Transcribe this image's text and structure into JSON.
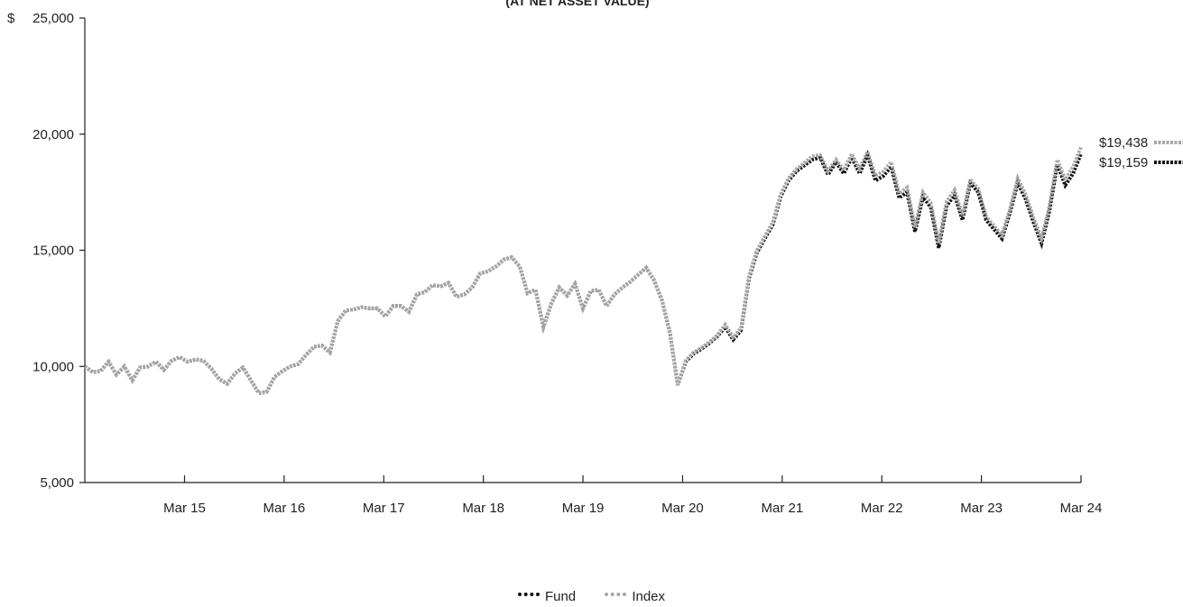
{
  "chart_data": {
    "type": "line",
    "title": "(AT NET ASSET VALUE)",
    "currency_prefix": "$",
    "y_ticks": [
      "25,000",
      "20,000",
      "15,000",
      "10,000",
      "5,000"
    ],
    "ylim": [
      5000,
      25000
    ],
    "x_ticks": [
      "Mar 15",
      "Mar 16",
      "Mar 17",
      "Mar 18",
      "Mar 19",
      "Mar 20",
      "Mar 21",
      "Mar 22",
      "Mar 23",
      "Mar 24"
    ],
    "grid": false,
    "legend_position": "bottom-center",
    "series": [
      {
        "name": "Fund",
        "color": "#111111",
        "end_label": "$19,159",
        "values": [
          10000,
          9750,
          9800,
          10200,
          9650,
          10000,
          9400,
          9950,
          10000,
          10200,
          9850,
          10250,
          10400,
          10200,
          10300,
          10250,
          9900,
          9450,
          9250,
          9700,
          9950,
          9400,
          8850,
          8900,
          9550,
          9800,
          10000,
          10100,
          10500,
          10850,
          10900,
          10600,
          11950,
          12400,
          12450,
          12550,
          12500,
          12500,
          12150,
          12600,
          12600,
          12350,
          13100,
          13200,
          13500,
          13450,
          13600,
          13000,
          13100,
          13400,
          14000,
          14100,
          14300,
          14600,
          14700,
          14300,
          13150,
          13300,
          11700,
          12700,
          13400,
          13050,
          13550,
          12500,
          13250,
          13300,
          12600,
          13100,
          13400,
          13650,
          13950,
          14250,
          13700,
          12850,
          11450,
          9200,
          10200,
          10550,
          10750,
          11000,
          11300,
          11700,
          11150,
          11550,
          13800,
          14900,
          15500,
          16100,
          17300,
          18000,
          18400,
          18650,
          18900,
          19000,
          18250,
          18800,
          18300,
          19000,
          18300,
          19100,
          18000,
          18200,
          18600,
          17250,
          17500,
          15800,
          17300,
          16850,
          15100,
          16900,
          17400,
          16300,
          17900,
          17500,
          16300,
          15900,
          15500,
          16600,
          17900,
          17200,
          16200,
          15300,
          16700,
          18700,
          17800,
          18300,
          19159
        ]
      },
      {
        "name": "Index",
        "color": "#a6a6a6",
        "end_label": "$19,438",
        "values": [
          10000,
          9750,
          9800,
          10200,
          9650,
          10000,
          9400,
          9950,
          10000,
          10200,
          9850,
          10250,
          10400,
          10200,
          10300,
          10250,
          9900,
          9450,
          9250,
          9700,
          9950,
          9400,
          8850,
          8900,
          9550,
          9800,
          10000,
          10100,
          10500,
          10850,
          10900,
          10600,
          11950,
          12400,
          12450,
          12550,
          12500,
          12500,
          12150,
          12600,
          12600,
          12350,
          13100,
          13200,
          13500,
          13450,
          13600,
          13000,
          13100,
          13400,
          14000,
          14100,
          14300,
          14600,
          14700,
          14300,
          13150,
          13300,
          11700,
          12700,
          13400,
          13050,
          13550,
          12500,
          13250,
          13300,
          12600,
          13100,
          13400,
          13650,
          13950,
          14250,
          13700,
          12850,
          11450,
          9200,
          10250,
          10600,
          10800,
          11050,
          11350,
          11800,
          11250,
          11650,
          13900,
          15000,
          15600,
          16200,
          17400,
          18100,
          18500,
          18750,
          19050,
          19100,
          18400,
          18900,
          18450,
          19150,
          18500,
          19250,
          18200,
          18400,
          18800,
          17450,
          17700,
          16000,
          17500,
          17050,
          15300,
          17100,
          17600,
          16500,
          18050,
          17650,
          16450,
          16050,
          15650,
          16750,
          18100,
          17400,
          16400,
          15500,
          16900,
          18900,
          18050,
          18600,
          19438
        ]
      }
    ]
  }
}
